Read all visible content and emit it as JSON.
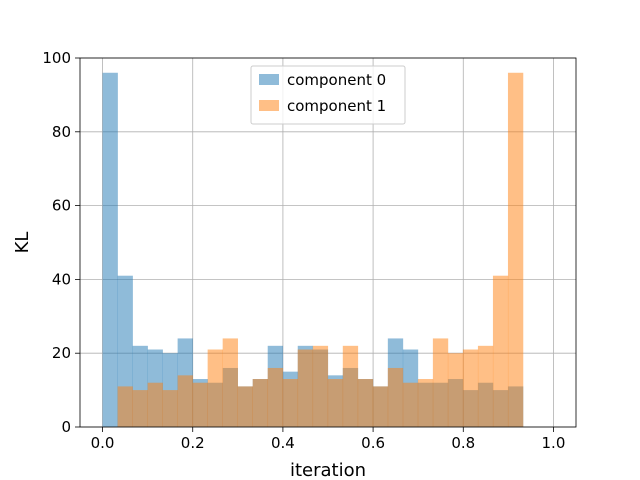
{
  "chart_data": {
    "type": "bar",
    "subtype": "overlapping-histogram",
    "title": "",
    "xlabel": "iteration",
    "ylabel": "KL",
    "xlim": [
      -0.05,
      1.05
    ],
    "ylim": [
      0,
      100
    ],
    "xticks": [
      "0.0",
      "0.2",
      "0.4",
      "0.6",
      "0.8",
      "1.0"
    ],
    "yticks": [
      "0",
      "20",
      "40",
      "60",
      "80",
      "100"
    ],
    "grid": true,
    "legend_position": "top-center",
    "series": [
      {
        "name": "component 0",
        "color": "#1f77b4",
        "alpha": 0.5,
        "bin_start": 0.0,
        "bin_width": 0.0333,
        "values": [
          96,
          41,
          22,
          21,
          20,
          24,
          13,
          12,
          16,
          11,
          13,
          22,
          15,
          22,
          21,
          14,
          16,
          13,
          11,
          24,
          21,
          12,
          12,
          13,
          10,
          12,
          10,
          11
        ]
      },
      {
        "name": "component 1",
        "color": "#ff7f0e",
        "alpha": 0.5,
        "bin_start": 0.0333,
        "bin_width": 0.0333,
        "values": [
          11,
          10,
          12,
          10,
          14,
          12,
          21,
          24,
          11,
          13,
          16,
          13,
          21,
          22,
          13,
          22,
          13,
          11,
          16,
          12,
          13,
          24,
          20,
          21,
          22,
          41,
          96
        ]
      }
    ]
  }
}
